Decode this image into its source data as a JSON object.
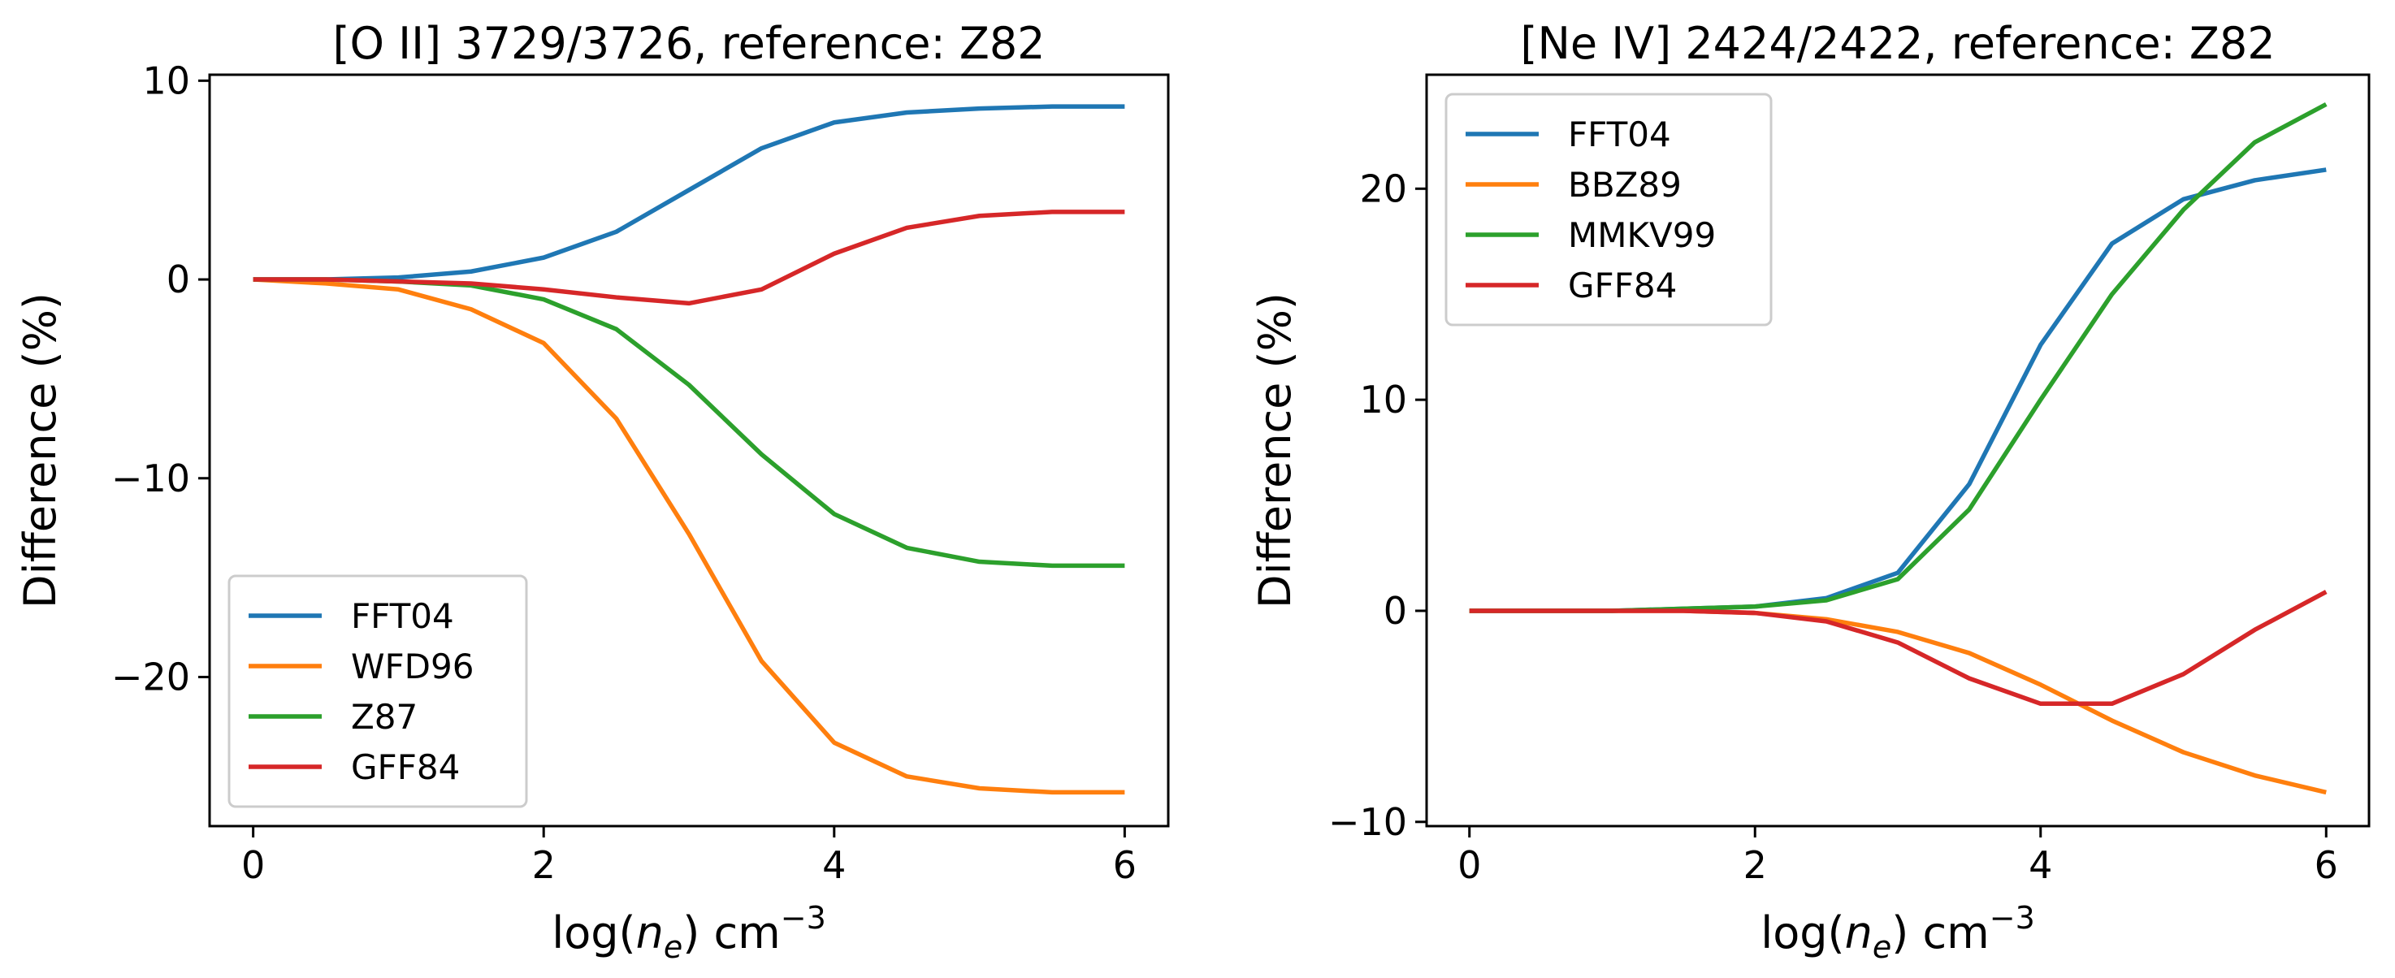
{
  "chart_data": [
    {
      "type": "line",
      "title": "[O II] 3729/3726, reference: Z82",
      "xlabel": "log(n_e) cm^-3",
      "xlabel_parts": {
        "pre": "log(",
        "var": "n",
        "sub": "e",
        "post": ") cm",
        "sup": "−3"
      },
      "ylabel": "Difference (%)",
      "xlim": [
        -0.3,
        6.3
      ],
      "ylim": [
        -27.5,
        10.3
      ],
      "xticks": [
        0,
        2,
        4,
        6
      ],
      "xtick_labels": [
        "0",
        "2",
        "4",
        "6"
      ],
      "yticks": [
        -20,
        -10,
        0,
        10
      ],
      "ytick_labels": [
        "−20",
        "−10",
        "0",
        "10"
      ],
      "legend_position": "lower-left",
      "x": [
        0,
        0.5,
        1,
        1.5,
        2,
        2.5,
        3,
        3.5,
        4,
        4.5,
        5,
        5.5,
        6
      ],
      "series": [
        {
          "name": "FFT04",
          "color": "#1f77b4",
          "values": [
            0,
            0,
            0.1,
            0.4,
            1.1,
            2.4,
            4.5,
            6.6,
            7.9,
            8.4,
            8.6,
            8.7,
            8.7
          ]
        },
        {
          "name": "WFD96",
          "color": "#ff7f0e",
          "values": [
            0,
            -0.2,
            -0.5,
            -1.5,
            -3.2,
            -7.0,
            -12.8,
            -19.2,
            -23.3,
            -25.0,
            -25.6,
            -25.8,
            -25.8
          ]
        },
        {
          "name": "Z87",
          "color": "#2ca02c",
          "values": [
            0,
            0,
            -0.1,
            -0.3,
            -1.0,
            -2.5,
            -5.3,
            -8.8,
            -11.8,
            -13.5,
            -14.2,
            -14.4,
            -14.4
          ]
        },
        {
          "name": "GFF84",
          "color": "#d62728",
          "values": [
            0,
            0,
            -0.1,
            -0.2,
            -0.5,
            -0.9,
            -1.2,
            -0.5,
            1.3,
            2.6,
            3.2,
            3.4,
            3.4
          ]
        }
      ]
    },
    {
      "type": "line",
      "title": "[Ne IV] 2424/2422, reference: Z82",
      "xlabel": "log(n_e) cm^-3",
      "xlabel_parts": {
        "pre": "log(",
        "var": "n",
        "sub": "e",
        "post": ") cm",
        "sup": "−3"
      },
      "ylabel": "Difference (%)",
      "xlim": [
        -0.3,
        6.3
      ],
      "ylim": [
        -10.2,
        25.4
      ],
      "xticks": [
        0,
        2,
        4,
        6
      ],
      "xtick_labels": [
        "0",
        "2",
        "4",
        "6"
      ],
      "yticks": [
        -10,
        0,
        10,
        20
      ],
      "ytick_labels": [
        "−10",
        "0",
        "10",
        "20"
      ],
      "legend_position": "upper-left",
      "x": [
        0,
        0.5,
        1,
        1.5,
        2,
        2.5,
        3,
        3.5,
        4,
        4.5,
        5,
        5.5,
        6
      ],
      "series": [
        {
          "name": "FFT04",
          "color": "#1f77b4",
          "values": [
            0,
            0,
            0,
            0.1,
            0.2,
            0.6,
            1.8,
            6.0,
            12.6,
            17.4,
            19.5,
            20.4,
            20.9
          ]
        },
        {
          "name": "BBZ89",
          "color": "#ff7f0e",
          "values": [
            0,
            0,
            0,
            0,
            -0.1,
            -0.4,
            -1.0,
            -2.0,
            -3.5,
            -5.2,
            -6.7,
            -7.8,
            -8.6
          ]
        },
        {
          "name": "MMKV99",
          "color": "#2ca02c",
          "values": [
            0,
            0,
            0,
            0.1,
            0.2,
            0.5,
            1.5,
            4.8,
            10.0,
            15.0,
            19.0,
            22.2,
            24.0
          ]
        },
        {
          "name": "GFF84",
          "color": "#d62728",
          "values": [
            0,
            0,
            0,
            0,
            -0.1,
            -0.5,
            -1.5,
            -3.2,
            -4.4,
            -4.4,
            -3.0,
            -0.9,
            0.9
          ]
        }
      ]
    }
  ]
}
